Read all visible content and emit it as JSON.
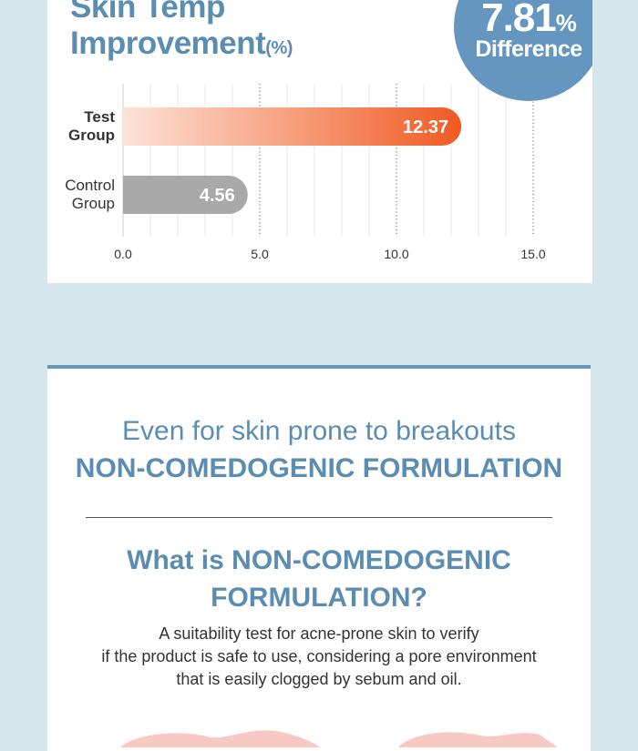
{
  "card1": {
    "title_line1": "Skin Temp",
    "title_line2": "Improvement",
    "title_unit": "(%)",
    "badge_value": "7.81",
    "badge_pct": "%",
    "badge_label": "Difference"
  },
  "chart_data": {
    "type": "bar",
    "orientation": "horizontal",
    "categories": [
      "Test Group",
      "Control Group"
    ],
    "category_lines": [
      [
        "Test",
        "Group"
      ],
      [
        "Control",
        "Group"
      ]
    ],
    "values": [
      12.37,
      4.56
    ],
    "value_labels": [
      "12.37",
      "4.56"
    ],
    "xlim": [
      0,
      15
    ],
    "xticks": [
      "0.0",
      "5.0",
      "10.0",
      "15.0"
    ],
    "grid": "vertical dotted",
    "colors": {
      "test_start": "#fde3d8",
      "test_end": "#f05a22",
      "control": "#a9a9a9"
    }
  },
  "card2": {
    "subtitle1": "Even for skin prone to breakouts",
    "subtitle2": "NON-COMEDOGENIC FORMULATION",
    "question_line1": "What is NON-COMEDOGENIC",
    "question_line2": "FORMULATION?",
    "desc_line1": "A suitability test for acne-prone skin to verify",
    "desc_line2": "if the product is safe to use, considering a pore environment",
    "desc_line3": "that is easily clogged by sebum and oil."
  },
  "colors": {
    "accent": "#6596bf",
    "title": "#5b8db3",
    "background": "#d5e6ec"
  }
}
